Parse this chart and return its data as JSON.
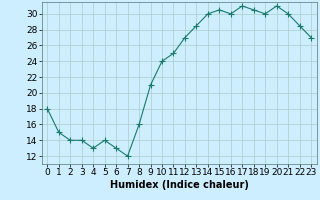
{
  "x": [
    0,
    1,
    2,
    3,
    4,
    5,
    6,
    7,
    8,
    9,
    10,
    11,
    12,
    13,
    14,
    15,
    16,
    17,
    18,
    19,
    20,
    21,
    22,
    23
  ],
  "y": [
    18,
    15,
    14,
    14,
    13,
    14,
    13,
    12,
    16,
    21,
    24,
    25,
    27,
    28.5,
    30,
    30.5,
    30,
    31,
    30.5,
    30,
    31,
    30,
    28.5,
    27
  ],
  "line_color": "#1a7a6a",
  "marker": "+",
  "marker_size": 4,
  "bg_color": "#cceeff",
  "grid_color": "#aacccc",
  "xlabel": "Humidex (Indice chaleur)",
  "xlabel_fontsize": 7,
  "ylabel_ticks": [
    12,
    14,
    16,
    18,
    20,
    22,
    24,
    26,
    28,
    30
  ],
  "ylim": [
    11.0,
    31.5
  ],
  "xlim": [
    -0.5,
    23.5
  ],
  "xtick_labels": [
    "0",
    "1",
    "2",
    "3",
    "4",
    "5",
    "6",
    "7",
    "8",
    "9",
    "10",
    "11",
    "12",
    "13",
    "14",
    "15",
    "16",
    "17",
    "18",
    "19",
    "20",
    "21",
    "22",
    "23"
  ],
  "tick_fontsize": 6.5
}
